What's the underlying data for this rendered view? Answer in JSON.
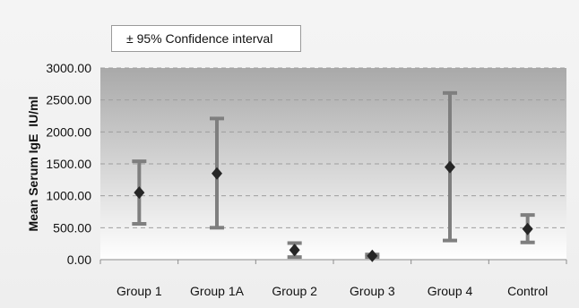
{
  "chart_data": {
    "type": "scatter",
    "subtype": "error_bars",
    "legend": [
      "± 95% Confidence interval"
    ],
    "legend_position": "top-left",
    "ylabel": "Mean Serum IgE  IU/ml",
    "xlabel": "",
    "categories": [
      "Group 1",
      "Group 1A",
      "Group 2",
      "Group 3",
      "Group 4",
      "Control"
    ],
    "mean": [
      1050,
      1350,
      150,
      60,
      1450,
      480
    ],
    "lower": [
      560,
      500,
      40,
      40,
      300,
      270
    ],
    "upper": [
      1540,
      2210,
      260,
      80,
      2610,
      700
    ],
    "ylim": [
      0,
      3000
    ],
    "yticks": [
      "3000.00",
      "2500.00",
      "2000.00",
      "1500.00",
      "1000.00",
      "500.00",
      "0.00"
    ],
    "ytick_values": [
      3000,
      2500,
      2000,
      1500,
      1000,
      500,
      0
    ],
    "grid": true,
    "colors": {
      "error_bar": "#7f7f7f",
      "marker": "#262626",
      "gridline": "#9e9e9e",
      "plot_top": "#a9a9a9",
      "plot_bottom": "#ffffff"
    }
  }
}
